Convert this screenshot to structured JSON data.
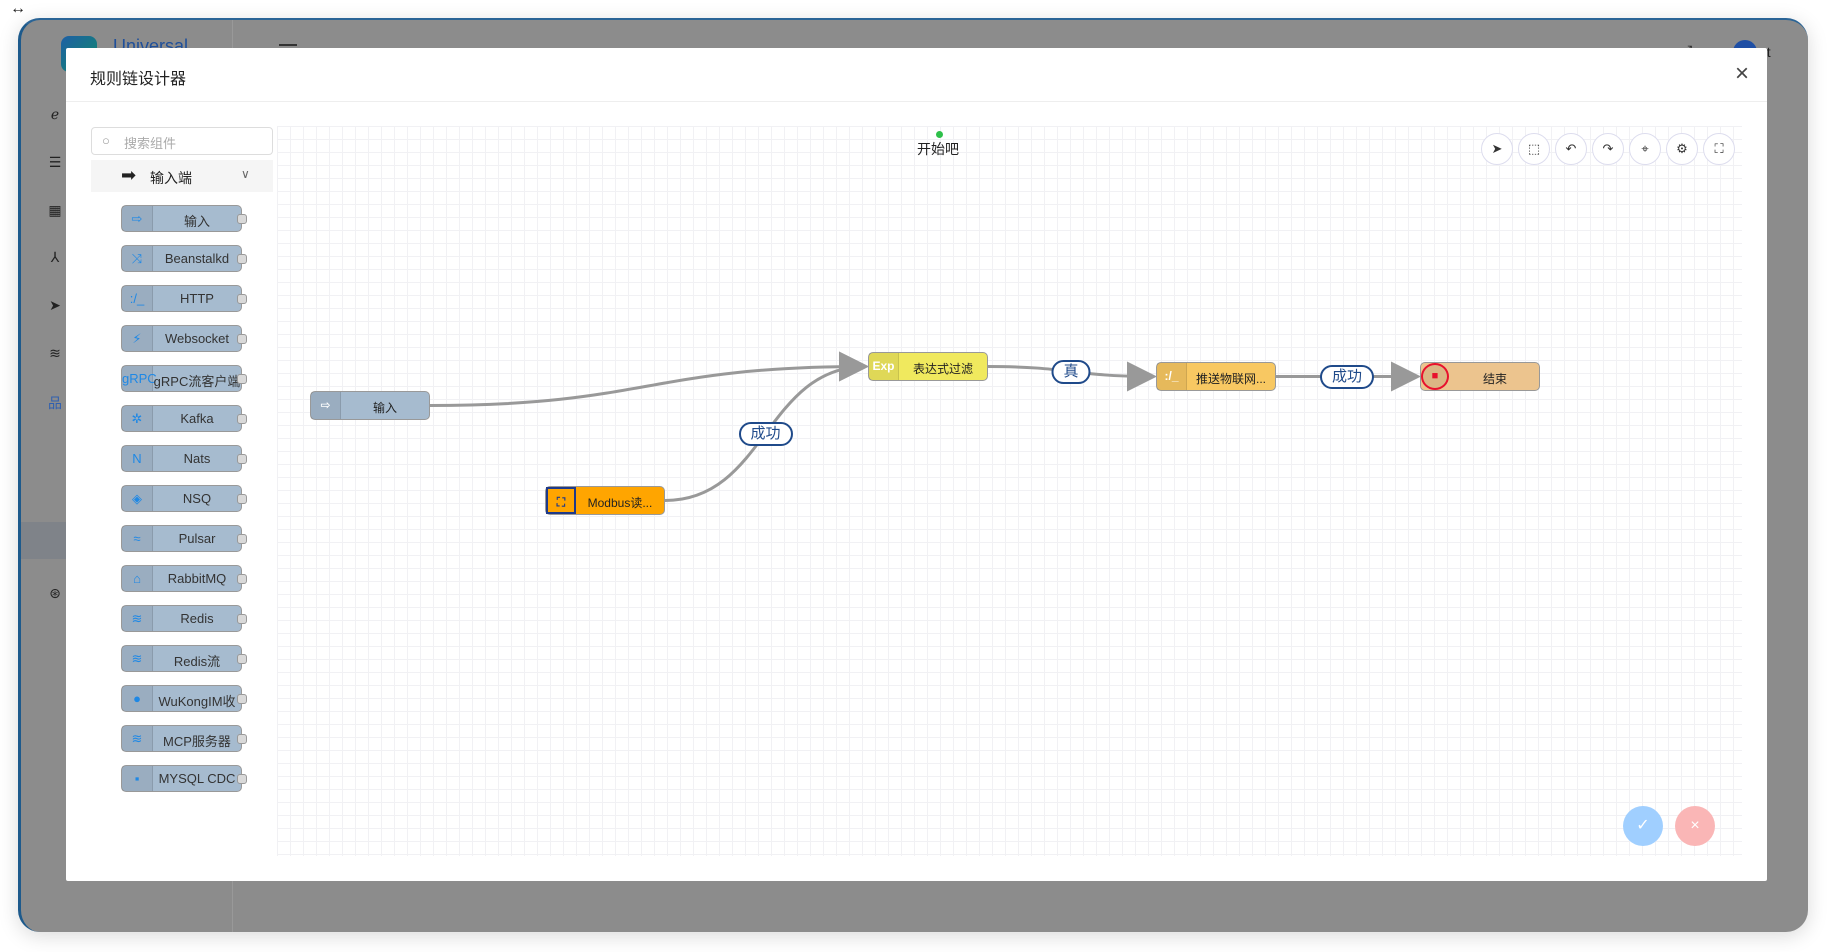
{
  "app": {
    "brand": "Universal",
    "user": "ot"
  },
  "sidebar_icons": [
    "ie-icon",
    "server-icon",
    "grid-icon",
    "topology-icon",
    "send-icon",
    "wifi-icon",
    "network-icon",
    "settings-circle-icon"
  ],
  "modal": {
    "title": "规则链设计器",
    "close": "×"
  },
  "palette": {
    "search_placeholder": "搜索组件",
    "category": "输入端",
    "items": [
      {
        "label": "输入",
        "icon": "⇨"
      },
      {
        "label": "Beanstalkd",
        "icon": "⤨"
      },
      {
        "label": "HTTP",
        "icon": ":/_"
      },
      {
        "label": "Websocket",
        "icon": "⚡"
      },
      {
        "label": "gRPC流客户端",
        "icon": "gRPC"
      },
      {
        "label": "Kafka",
        "icon": "✲"
      },
      {
        "label": "Nats",
        "icon": "N"
      },
      {
        "label": "NSQ",
        "icon": "◈"
      },
      {
        "label": "Pulsar",
        "icon": "≈"
      },
      {
        "label": "RabbitMQ",
        "icon": "⌂"
      },
      {
        "label": "Redis",
        "icon": "≋"
      },
      {
        "label": "Redis流",
        "icon": "≋"
      },
      {
        "label": "WuKongIM收",
        "icon": "●"
      },
      {
        "label": "MCP服务器",
        "icon": "≋"
      },
      {
        "label": "MYSQL CDC",
        "icon": "▪"
      }
    ]
  },
  "canvas": {
    "start_label": "开始吧",
    "toolbar": [
      {
        "name": "deploy",
        "icon": "➤"
      },
      {
        "name": "select",
        "icon": "⬚"
      },
      {
        "name": "undo",
        "icon": "↶"
      },
      {
        "name": "redo",
        "icon": "↷"
      },
      {
        "name": "locate",
        "icon": "⌖"
      },
      {
        "name": "settings",
        "icon": "⚙"
      },
      {
        "name": "fullscreen",
        "icon": "⛶"
      }
    ],
    "nodes": [
      {
        "id": "input",
        "label": "输入",
        "icon": "⇨",
        "color": "#a6bbcf"
      },
      {
        "id": "expr",
        "label": "表达式过滤",
        "icon": "Exp",
        "color": "#f0e95e"
      },
      {
        "id": "modbus",
        "label": "Modbus读...",
        "icon": "⛶",
        "color": "#ffa500"
      },
      {
        "id": "push",
        "label": "推送物联网...",
        "icon": ":/_",
        "color": "#f8c862"
      },
      {
        "id": "end",
        "label": "结束",
        "icon": "■",
        "color": "#ecc48e"
      }
    ],
    "edges": [
      {
        "from": "input",
        "to": "expr",
        "label": ""
      },
      {
        "from": "modbus",
        "to": "expr",
        "label": "成功"
      },
      {
        "from": "expr",
        "to": "push",
        "label": "真"
      },
      {
        "from": "push",
        "to": "end",
        "label": "成功"
      }
    ]
  },
  "actions": {
    "confirm": "✓",
    "cancel": "×"
  }
}
